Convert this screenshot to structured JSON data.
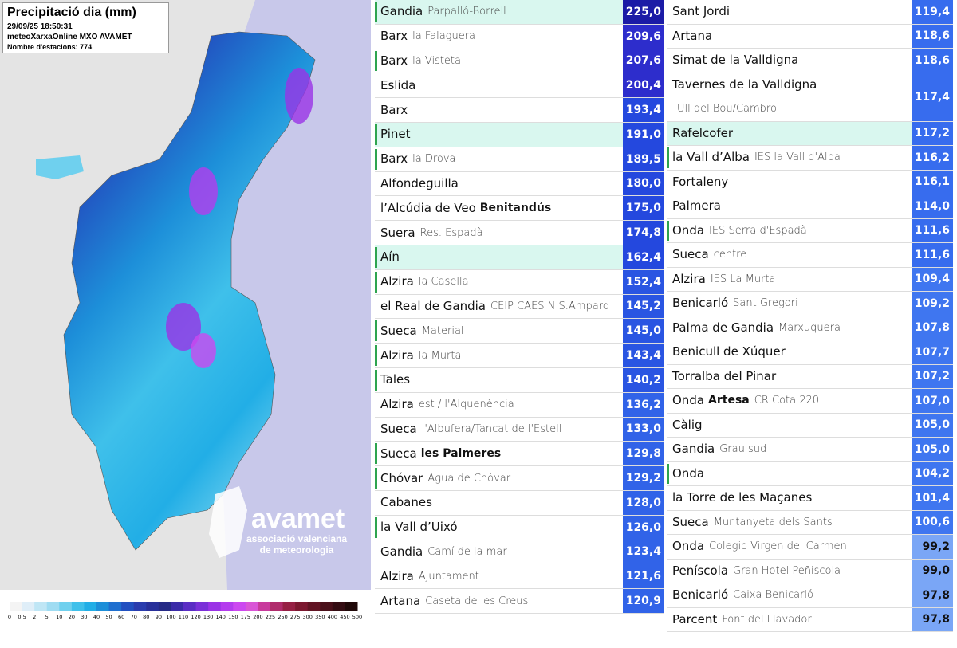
{
  "map": {
    "title": "Precipitació dia (mm)",
    "datetime": "29/09/25 18:50:31",
    "source": "meteoXarxaOnline MXO AVAMET",
    "stations": "Nombre d'estacions: 774",
    "logo": {
      "name": "avamet",
      "line1": "associació valenciana",
      "line2": "de meteorologia"
    },
    "legend": {
      "labels": [
        "0",
        "0,5",
        "2",
        "5",
        "10",
        "20",
        "30",
        "40",
        "50",
        "60",
        "70",
        "80",
        "90",
        "100",
        "110",
        "120",
        "130",
        "140",
        "150",
        "175",
        "200",
        "225",
        "250",
        "275",
        "300",
        "350",
        "400",
        "450",
        "500"
      ],
      "colors": [
        "#f4f4f4",
        "#dfeef8",
        "#bfe6f5",
        "#9fdcf2",
        "#6fd0ee",
        "#3fc0ea",
        "#22aee6",
        "#1d8fd9",
        "#1f6fcf",
        "#2250c0",
        "#2a3cae",
        "#28309a",
        "#262a86",
        "#3b2ba8",
        "#5a2dc4",
        "#7a30d8",
        "#9a33e6",
        "#b43cee",
        "#cc48f0",
        "#d955d6",
        "#c83a9c",
        "#b02c6c",
        "#962044",
        "#7c1830",
        "#621424",
        "#4a101a",
        "#340c12",
        "#200808"
      ]
    }
  },
  "tables": [
    {
      "rows": [
        {
          "name": "Gandia",
          "sub": "Parpalló-Borrell",
          "value": "225,0",
          "color": "#1b1ba6",
          "highlight": true,
          "marker": true
        },
        {
          "name": "Barx",
          "sub": "la Falaguera",
          "value": "209,6",
          "color": "#2d2dcc"
        },
        {
          "name": "Barx",
          "sub": "la Visteta",
          "value": "207,6",
          "color": "#2d2dcc",
          "marker": true
        },
        {
          "name": "Eslida",
          "value": "200,4",
          "color": "#2d2dcc"
        },
        {
          "name": "Barx",
          "value": "193,4",
          "color": "#2448de"
        },
        {
          "name": "Pinet",
          "value": "191,0",
          "color": "#2448de",
          "highlight": true,
          "marker": true
        },
        {
          "name": "Barx",
          "sub": "la Drova",
          "value": "189,5",
          "color": "#2448de",
          "marker": true
        },
        {
          "name": "Alfondeguilla",
          "value": "180,0",
          "color": "#2448de"
        },
        {
          "name": "l’Alcúdia de Veo",
          "bold": "Benitandús",
          "value": "175,0",
          "color": "#2448de"
        },
        {
          "name": "Suera",
          "sub": "Res. Espadà",
          "value": "174,8",
          "color": "#2448de"
        },
        {
          "name": "Aín",
          "value": "162,4",
          "color": "#2448de",
          "highlight": true,
          "marker": true
        },
        {
          "name": "Alzira",
          "sub": "la Casella",
          "value": "152,4",
          "color": "#2a55e2",
          "marker": true
        },
        {
          "name": "el Real de Gandia",
          "sub": "CEIP CAES N.S.Amparo",
          "value": "145,2",
          "color": "#2a55e2"
        },
        {
          "name": "Sueca",
          "sub": "Material",
          "value": "145,0",
          "color": "#2a55e2",
          "marker": true
        },
        {
          "name": "Alzira",
          "sub": "la Murta",
          "value": "143,4",
          "color": "#2a55e2",
          "marker": true
        },
        {
          "name": "Tales",
          "value": "140,2",
          "color": "#2a55e2",
          "marker": true
        },
        {
          "name": "Alzira",
          "sub": "est / l'Alquenència",
          "value": "136,2",
          "color": "#3163e8"
        },
        {
          "name": "Sueca",
          "sub": "l'Albufera/Tancat de l'Estell",
          "value": "133,0",
          "color": "#3163e8"
        },
        {
          "name": "Sueca",
          "bold": "les Palmeres",
          "value": "129,8",
          "color": "#3163e8",
          "marker": true
        },
        {
          "name": "Chóvar",
          "sub": "Agua de Chóvar",
          "value": "129,2",
          "color": "#3163e8",
          "marker": true
        },
        {
          "name": "Cabanes",
          "value": "128,0",
          "color": "#3163e8"
        },
        {
          "name": "la Vall d’Uixó",
          "value": "126,0",
          "color": "#3163e8",
          "marker": true
        },
        {
          "name": "Gandia",
          "sub": "Camí de la mar",
          "value": "123,4",
          "color": "#3163e8"
        },
        {
          "name": "Alzira",
          "sub": "Ajuntament",
          "value": "121,6",
          "color": "#3163e8"
        },
        {
          "name": "Artana",
          "sub": "Caseta de les Creus",
          "value": "120,9",
          "color": "#3163e8"
        }
      ]
    },
    {
      "rows": [
        {
          "name": "Sant Jordi",
          "value": "119,4",
          "color": "#376cee"
        },
        {
          "name": "Artana",
          "value": "118,6",
          "color": "#376cee"
        },
        {
          "name": "Simat de la Valldigna",
          "value": "118,6",
          "color": "#376cee"
        },
        {
          "name": "Tavernes de la Valldigna",
          "sub": "Ull del Bou/Cambro",
          "value": "117,4",
          "color": "#376cee",
          "tall": true
        },
        {
          "name": "Rafelcofer",
          "value": "117,2",
          "color": "#376cee",
          "highlight": true
        },
        {
          "name": "la Vall d’Alba",
          "sub": "IES la Vall d'Alba",
          "value": "116,2",
          "color": "#376cee",
          "marker": true
        },
        {
          "name": "Fortaleny",
          "value": "116,1",
          "color": "#376cee"
        },
        {
          "name": "Palmera",
          "value": "114,0",
          "color": "#376cee"
        },
        {
          "name": "Onda",
          "sub": "IES Serra d'Espadà",
          "value": "111,6",
          "color": "#376cee",
          "marker": true
        },
        {
          "name": "Sueca",
          "sub": "centre",
          "value": "111,6",
          "color": "#376cee"
        },
        {
          "name": "Alzira",
          "sub": "IES La Murta",
          "value": "109,4",
          "color": "#3f76f0"
        },
        {
          "name": "Benicarló",
          "sub": "Sant Gregori",
          "value": "109,2",
          "color": "#3f76f0"
        },
        {
          "name": "Palma de Gandia",
          "sub": "Marxuquera",
          "value": "107,8",
          "color": "#3f76f0"
        },
        {
          "name": "Benicull de Xúquer",
          "value": "107,7",
          "color": "#3f76f0"
        },
        {
          "name": "Torralba del Pinar",
          "value": "107,2",
          "color": "#3f76f0"
        },
        {
          "name": "Onda",
          "bold": "Artesa",
          "sub": "CR Cota 220",
          "value": "107,0",
          "color": "#3f76f0"
        },
        {
          "name": "Càlig",
          "value": "105,0",
          "color": "#3f76f0"
        },
        {
          "name": "Gandia",
          "sub": "Grau sud",
          "value": "105,0",
          "color": "#3f76f0"
        },
        {
          "name": "Onda",
          "value": "104,2",
          "color": "#3f76f0",
          "marker": true
        },
        {
          "name": "la Torre de les Maçanes",
          "value": "101,4",
          "color": "#3f76f0"
        },
        {
          "name": "Sueca",
          "sub": "Muntanyeta dels Sants",
          "value": "100,6",
          "color": "#3f76f0"
        },
        {
          "name": "Onda",
          "sub": "Colegio Virgen del Carmen",
          "value": "99,2",
          "color": "#7aa6f6"
        },
        {
          "name": "Peníscola",
          "sub": "Gran Hotel Peñiscola",
          "value": "99,0",
          "color": "#7aa6f6"
        },
        {
          "name": "Benicarló",
          "sub": "Caixa Benicarló",
          "value": "97,8",
          "color": "#7aa6f6"
        },
        {
          "name": "Parcent",
          "sub": "Font del Llavador",
          "value": "97,8",
          "color": "#7aa6f6"
        }
      ]
    }
  ]
}
